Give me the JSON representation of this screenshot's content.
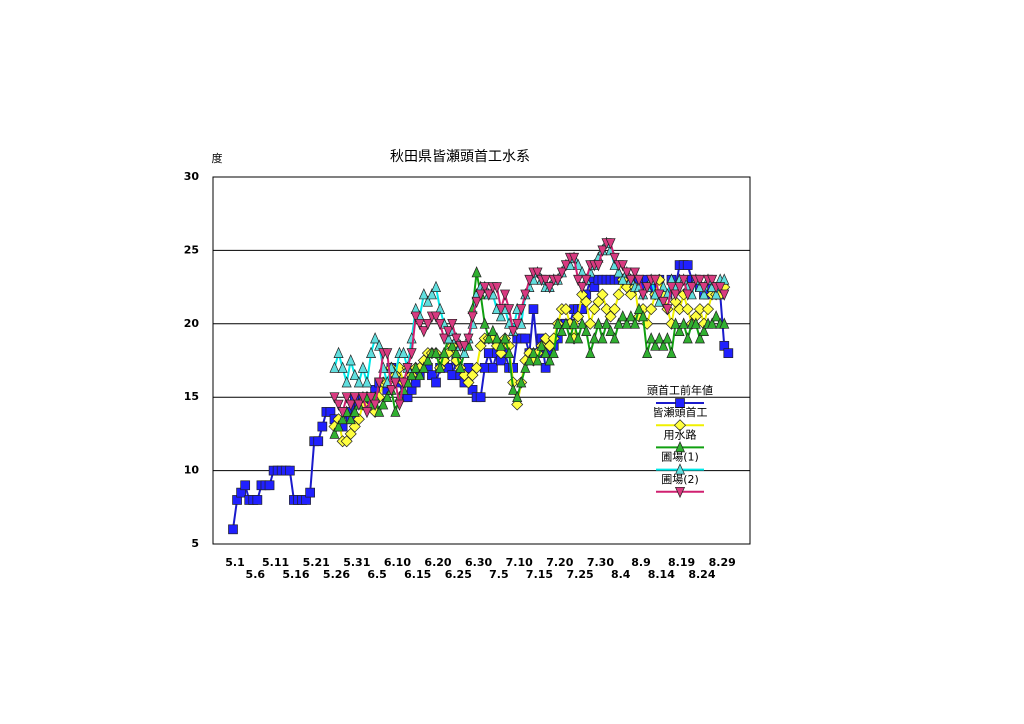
{
  "chart_data": {
    "type": "line",
    "title": "秋田県皆瀬頭首工水系",
    "y_label": "度",
    "categories": [
      "5.1",
      null,
      null,
      null,
      null,
      "5.6",
      null,
      null,
      null,
      null,
      "5.11",
      null,
      null,
      null,
      null,
      "5.16",
      null,
      null,
      null,
      null,
      "5.21",
      null,
      null,
      null,
      null,
      "5.26",
      null,
      null,
      null,
      null,
      "5.31",
      null,
      null,
      null,
      null,
      "6.5",
      null,
      null,
      null,
      null,
      "6.10",
      null,
      null,
      null,
      null,
      "6.15",
      null,
      null,
      null,
      null,
      "6.20",
      null,
      null,
      null,
      null,
      "6.25",
      null,
      null,
      null,
      null,
      "6.30",
      null,
      null,
      null,
      null,
      "7.5",
      null,
      null,
      null,
      null,
      "7.10",
      null,
      null,
      null,
      null,
      "7.15",
      null,
      null,
      null,
      null,
      "7.20",
      null,
      null,
      null,
      null,
      "7.25",
      null,
      null,
      null,
      null,
      "7.30",
      null,
      null,
      null,
      null,
      "8.4",
      null,
      null,
      null,
      null,
      "8.9",
      null,
      null,
      null,
      null,
      "8.14",
      null,
      null,
      null,
      null,
      "8.19",
      null,
      null,
      null,
      null,
      "8.24",
      null,
      null,
      null,
      null,
      "8.29",
      null,
      null
    ],
    "ylim": [
      5,
      30
    ],
    "yticks": [
      5,
      10,
      15,
      20,
      25,
      30
    ],
    "grid": true,
    "series": [
      {
        "name": "頭首工前年値",
        "color": "#1a1acc",
        "marker_color": "#2020ff",
        "marker": "square",
        "values": [
          6,
          8,
          8.5,
          9,
          8,
          8,
          8,
          9,
          9,
          9,
          10,
          10,
          10,
          10,
          10,
          8,
          8,
          8,
          8,
          8.5,
          12,
          12,
          13,
          14,
          14,
          13.5,
          13,
          13,
          14,
          13.5,
          15,
          14.5,
          15,
          14.5,
          15,
          15.5,
          16,
          16,
          15.5,
          17,
          16.5,
          16,
          15,
          15,
          15.5,
          16,
          16.5,
          17,
          17,
          16.5,
          16,
          17,
          17.5,
          17,
          16.5,
          17.5,
          16.5,
          16,
          17,
          15.5,
          15,
          15,
          17,
          18,
          17,
          18,
          17.5,
          18,
          17,
          17,
          19,
          19,
          19,
          18,
          21,
          18,
          19,
          17,
          18,
          18.5,
          19,
          20,
          20,
          20,
          21,
          21,
          21,
          22,
          23,
          22.5,
          23,
          23,
          23,
          23,
          23,
          23,
          23,
          23,
          22.5,
          23,
          23,
          22.5,
          23,
          22.5,
          22,
          23,
          22,
          22,
          23,
          22.5,
          24,
          24,
          24,
          23,
          23,
          22.5,
          22,
          22,
          22.5,
          22,
          22,
          18.5,
          18
        ]
      },
      {
        "name": "皆瀬頭首工",
        "color": "#f0f000",
        "marker_color": "#ffff40",
        "marker": "diamond",
        "values": [
          null,
          null,
          null,
          null,
          null,
          null,
          null,
          null,
          null,
          null,
          null,
          null,
          null,
          null,
          null,
          null,
          null,
          null,
          null,
          null,
          null,
          null,
          null,
          null,
          null,
          13,
          13.5,
          12,
          12,
          12.5,
          13,
          13.5,
          14.5,
          15,
          15,
          14,
          15,
          16,
          16,
          17,
          16.5,
          17,
          16,
          17,
          16.5,
          17,
          17,
          17.5,
          18,
          18,
          18,
          17,
          17.5,
          18,
          18.5,
          17.5,
          17,
          16.5,
          16,
          16.5,
          17,
          18.5,
          19,
          19,
          19,
          18.5,
          18,
          19,
          18.5,
          16,
          14.5,
          16,
          17.5,
          18,
          17.5,
          18,
          18.5,
          19,
          18.5,
          19,
          20,
          21,
          21,
          20,
          19,
          20.5,
          22,
          21.5,
          20,
          21,
          21.5,
          22,
          21,
          20.5,
          21,
          22,
          23,
          22.5,
          22,
          22.5,
          20.5,
          21,
          20,
          21,
          22,
          23,
          22,
          21,
          20,
          21.5,
          21,
          22,
          21,
          20,
          20.5,
          21,
          20,
          21,
          22,
          22,
          22,
          22.5,
          null
        ]
      },
      {
        "name": "用水路",
        "color": "#10a010",
        "marker_color": "#30b030",
        "marker": "triangle",
        "values": [
          null,
          null,
          null,
          null,
          null,
          null,
          null,
          null,
          null,
          null,
          null,
          null,
          null,
          null,
          null,
          null,
          null,
          null,
          null,
          null,
          null,
          null,
          null,
          null,
          null,
          12.5,
          13,
          13.5,
          14,
          13.5,
          14,
          14.5,
          15,
          15,
          14.5,
          15,
          14,
          14.5,
          15,
          15.5,
          14,
          15,
          15.5,
          16,
          16.5,
          17,
          16.5,
          17,
          17.5,
          18,
          18,
          17,
          18,
          19,
          18.5,
          18,
          17,
          18,
          18.5,
          21,
          23.5,
          22,
          20,
          19,
          19.5,
          19,
          18.5,
          19,
          18,
          15.5,
          15,
          16,
          17,
          17.5,
          18,
          17.5,
          18.5,
          18,
          17.5,
          18,
          20,
          19.5,
          20,
          19,
          20,
          19,
          20,
          19.5,
          18,
          19,
          20,
          19,
          20,
          19.5,
          19,
          20,
          20.5,
          20,
          20.5,
          20,
          21,
          20.5,
          18,
          19,
          18.5,
          19,
          18.5,
          19,
          18,
          20,
          19.5,
          20,
          19,
          20,
          20,
          19,
          19.5,
          20,
          20,
          20.5,
          20,
          20,
          null
        ]
      },
      {
        "name": "圃場(1)",
        "color": "#00e8e8",
        "marker_color": "#60dede",
        "marker": "triangle",
        "values": [
          null,
          null,
          null,
          null,
          null,
          null,
          null,
          null,
          null,
          null,
          null,
          null,
          null,
          null,
          null,
          null,
          null,
          null,
          null,
          null,
          null,
          null,
          null,
          null,
          null,
          17,
          18,
          17,
          16,
          17.5,
          16.5,
          16,
          17,
          16,
          18,
          19,
          18.5,
          17,
          16,
          17,
          16.5,
          18,
          18,
          17,
          19,
          21,
          20.5,
          22,
          21.5,
          22,
          22.5,
          21,
          20,
          19,
          19.5,
          19,
          18.5,
          18,
          19,
          20,
          22,
          22.5,
          22.5,
          22,
          22,
          21,
          20.5,
          21,
          20,
          19.5,
          21,
          20,
          22,
          22.5,
          23,
          23.5,
          23,
          22.5,
          22.5,
          23,
          23,
          23.5,
          24,
          24,
          24.5,
          24,
          23.5,
          23,
          23.5,
          24,
          24.5,
          25,
          25.5,
          25,
          24,
          23.5,
          23,
          23.5,
          23,
          22.5,
          22.5,
          22,
          22.5,
          23,
          22,
          21.5,
          22.5,
          22,
          23,
          22.5,
          23,
          23,
          22.5,
          22,
          23,
          22.5,
          22,
          23,
          22.5,
          22,
          23,
          23,
          null
        ]
      },
      {
        "name": "圃場(2)",
        "color": "#d02070",
        "marker_color": "#d83a80",
        "marker": "inverted-triangle",
        "values": [
          null,
          null,
          null,
          null,
          null,
          null,
          null,
          null,
          null,
          null,
          null,
          null,
          null,
          null,
          null,
          null,
          null,
          null,
          null,
          null,
          null,
          null,
          null,
          null,
          null,
          15,
          14.5,
          14,
          15,
          14.5,
          15,
          14.5,
          15,
          14,
          15,
          14.5,
          16,
          18,
          18,
          15.5,
          16,
          14.5,
          16,
          17,
          18,
          20.5,
          20,
          19.5,
          20,
          20.5,
          20.5,
          20,
          19,
          19.5,
          20,
          19,
          18.5,
          18.5,
          19,
          20.5,
          21.5,
          22,
          22.5,
          22,
          22.5,
          22.5,
          21,
          22,
          21,
          19.5,
          20,
          21,
          22,
          23,
          23.5,
          23.5,
          23,
          23,
          22.5,
          23,
          23,
          23.5,
          24,
          24.5,
          24.5,
          23,
          22.5,
          23,
          24,
          24,
          24,
          25,
          25.5,
          25.5,
          24.5,
          24,
          24,
          23.5,
          23,
          23.5,
          23,
          22,
          22.5,
          23,
          23,
          22,
          21.5,
          21,
          22.5,
          22,
          22.5,
          23,
          22,
          22.5,
          23,
          23,
          22.5,
          23,
          23,
          22.5,
          22.5,
          22,
          null
        ]
      }
    ]
  }
}
